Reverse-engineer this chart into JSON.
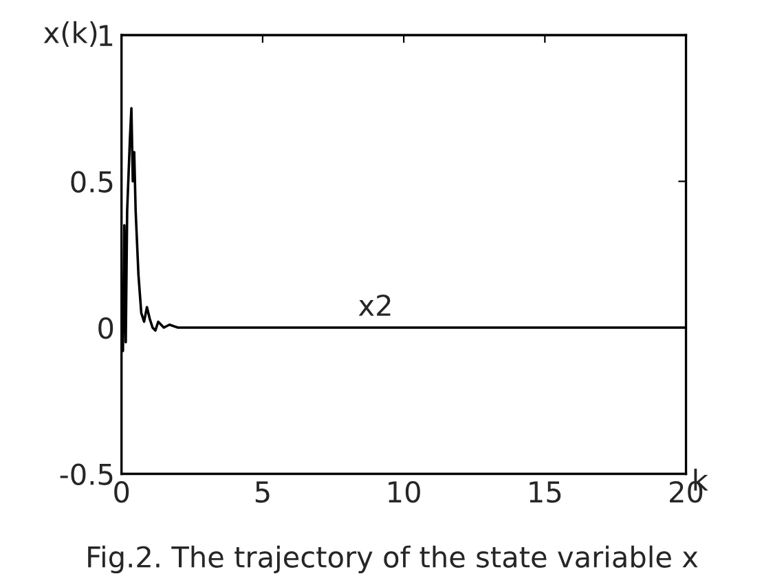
{
  "chart_data": {
    "type": "line",
    "ylabel": "x(k)",
    "xlabel": "k",
    "annotations": [
      {
        "text": "x2",
        "x": 9,
        "y": 0.02
      },
      "Fig.2. The trajectory of the state variable x"
    ],
    "x": [
      0,
      0.05,
      0.1,
      0.15,
      0.2,
      0.3,
      0.35,
      0.4,
      0.45,
      0.5,
      0.6,
      0.7,
      0.8,
      0.9,
      1.0,
      1.1,
      1.2,
      1.3,
      1.5,
      1.7,
      2,
      5,
      10,
      13.3,
      20
    ],
    "series": [
      {
        "color": "#000000",
        "values": [
          0,
          -0.08,
          0.35,
          -0.05,
          0.4,
          0.65,
          0.75,
          0.5,
          0.6,
          0.4,
          0.18,
          0.05,
          0.02,
          0.07,
          0.03,
          0.0,
          -0.01,
          0.02,
          0.0,
          0.01,
          0,
          0,
          0,
          0,
          0
        ]
      }
    ],
    "xlim": [
      0,
      20
    ],
    "ylim": [
      -0.5,
      1
    ],
    "xticks": [
      0,
      5,
      10,
      15,
      20
    ],
    "yticks": [
      -0.5,
      0,
      0.5,
      1
    ],
    "grid": false,
    "legend": false,
    "marker": "none",
    "line_style": "solid"
  }
}
